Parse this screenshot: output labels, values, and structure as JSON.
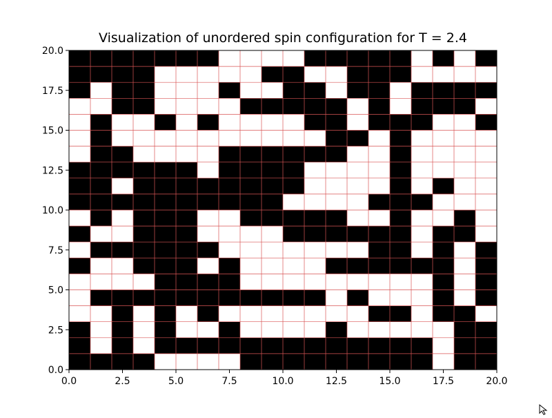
{
  "chart_data": {
    "type": "heatmap",
    "title": "Visualization of unordered spin configuration for T = 2.4",
    "xlabel": "",
    "ylabel": "",
    "xlim": [
      0,
      20
    ],
    "ylim": [
      0,
      20
    ],
    "xticks": [
      0,
      2.5,
      5,
      7.5,
      10,
      12.5,
      15,
      17.5,
      20
    ],
    "xtick_labels": [
      "0.0",
      "2.5",
      "5.0",
      "7.5",
      "10.0",
      "12.5",
      "15.0",
      "17.5",
      "20.0"
    ],
    "yticks": [
      0,
      2.5,
      5,
      7.5,
      10,
      12.5,
      15,
      17.5,
      20
    ],
    "ytick_labels": [
      "0.0",
      "2.5",
      "5.0",
      "7.5",
      "10.0",
      "12.5",
      "15.0",
      "17.5",
      "20.0"
    ],
    "grid": true,
    "grid_color": "#d95555",
    "colors": {
      "spin_up": "#000000",
      "spin_down": "#ffffff"
    },
    "rows_top_to_bottom": [
      "11111110000111110101",
      "11110000011001110000",
      "10110001001101101111",
      "00110000111110101110",
      "01001010000110111001",
      "01000000000011010000",
      "01100001111110010000",
      "11111101111000010000",
      "11011111111000010100",
      "11111111110000111000",
      "01011100111110010010",
      "10011100001111110110",
      "01111110000000110101",
      "10011101000011111101",
      "00001111000000000101",
      "01111111111101000101",
      "00101010000000110110",
      "10101001000010000011",
      "10101111111111111011",
      "11110000111111111011"
    ]
  },
  "cursor": {
    "icon": "mouse-cursor-icon"
  }
}
